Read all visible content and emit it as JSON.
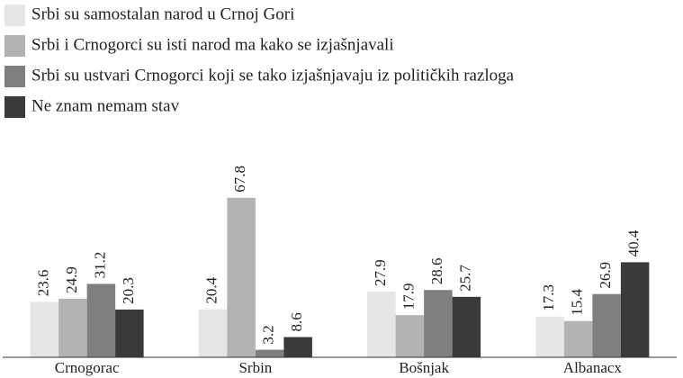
{
  "chart_data": {
    "type": "bar",
    "categories": [
      "Crnogorac",
      "Srbin",
      "Bošnjak",
      "Albanacx"
    ],
    "series": [
      {
        "name": "Srbi su samostalan narod u Crnoj Gori",
        "color": "#e6e6e6",
        "values": [
          23.6,
          20.4,
          27.9,
          17.3
        ]
      },
      {
        "name": "Srbi i Crnogorci su isti narod ma kako se izjašnjavali",
        "color": "#b3b3b3",
        "values": [
          24.9,
          67.8,
          17.9,
          15.4
        ]
      },
      {
        "name": "Srbi su ustvari Crnogorci koji se tako izjašnjavaju iz političkih razloga",
        "color": "#7f7f7f",
        "values": [
          31.2,
          3.2,
          28.6,
          26.9
        ]
      },
      {
        "name": "Ne znam nemam stav",
        "color": "#3a3a3a",
        "values": [
          20.3,
          8.6,
          25.7,
          40.4
        ]
      }
    ],
    "ylim": [
      0,
      70
    ]
  }
}
